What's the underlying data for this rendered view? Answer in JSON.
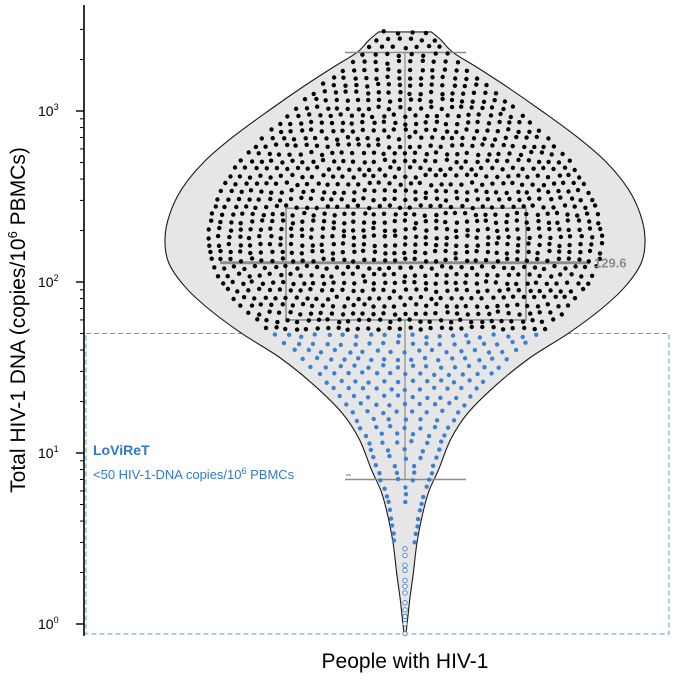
{
  "chart_data": {
    "type": "violin-beeswarm",
    "ylabel": "Total HIV-1 DNA (copies/10",
    "ylabel_sup": "6",
    "ylabel_end": " PBMCs)",
    "xlabel": "People with HIV-1",
    "y_scale": "log10",
    "ylim": [
      0.85,
      3000
    ],
    "y_ticks": [
      {
        "base": "10",
        "exp": "0",
        "value": 1
      },
      {
        "base": "10",
        "exp": "1",
        "value": 10
      },
      {
        "base": "10",
        "exp": "2",
        "value": 100
      },
      {
        "base": "10",
        "exp": "3",
        "value": 1000
      }
    ],
    "summary": {
      "median": 129.6,
      "median_label": "129.6",
      "q1": 60,
      "q3": 270,
      "whisker_low": 7,
      "whisker_high": 2200,
      "min": 0.88,
      "max": 2900
    },
    "violin_density": [
      [
        2900,
        0.11
      ],
      [
        2600,
        0.15
      ],
      [
        2200,
        0.2
      ],
      [
        1800,
        0.3
      ],
      [
        1400,
        0.42
      ],
      [
        1000,
        0.57
      ],
      [
        700,
        0.72
      ],
      [
        500,
        0.84
      ],
      [
        350,
        0.93
      ],
      [
        250,
        0.98
      ],
      [
        180,
        1.0
      ],
      [
        130,
        0.985
      ],
      [
        95,
        0.92
      ],
      [
        70,
        0.82
      ],
      [
        50,
        0.68
      ],
      [
        36,
        0.52
      ],
      [
        25,
        0.38
      ],
      [
        17,
        0.26
      ],
      [
        12,
        0.19
      ],
      [
        8,
        0.14
      ],
      [
        6,
        0.1
      ],
      [
        4.5,
        0.075
      ],
      [
        3,
        0.05
      ],
      [
        2,
        0.035
      ],
      [
        1.4,
        0.02
      ],
      [
        1.1,
        0.012
      ],
      [
        0.88,
        0.004
      ]
    ],
    "point_count_detected": 560,
    "point_count_undetectable": 12,
    "threshold": {
      "value": 50,
      "label": "LoViReT",
      "desc": "<50 HIV-1-DNA copies/10",
      "desc_sup": "6",
      "desc_end": " PBMCs"
    },
    "colors": {
      "violin_fill": "#e6e6e6",
      "violin_stroke": "#1a1a1a",
      "point_high": "#000000",
      "point_low": "#3c80d4",
      "box": "#8c8c8c",
      "threshold_box": "#5a9be0"
    }
  }
}
